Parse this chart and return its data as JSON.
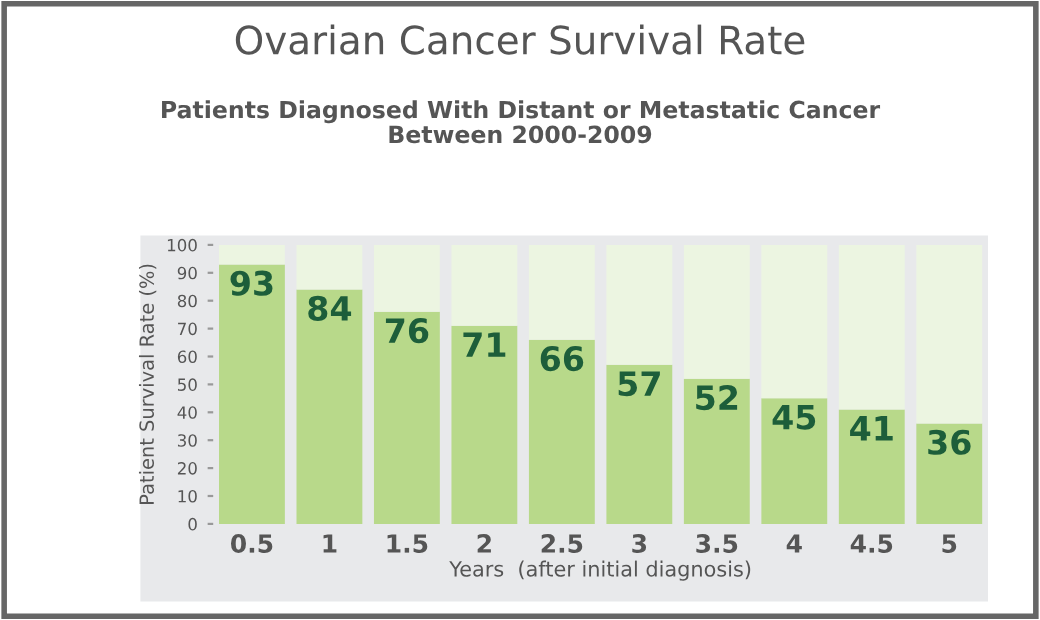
{
  "chart_data": {
    "type": "bar",
    "stacked": true,
    "title": "Ovarian Cancer Survival Rate",
    "subtitle": "Patients Diagnosed With Distant or Metastatic Cancer\nBetween 2000-2009",
    "xlabel": "Years  (after initial diagnosis)",
    "ylabel": "Patient Survival Rate (%)",
    "categories": [
      "0.5",
      "1",
      "1.5",
      "2",
      "2.5",
      "3",
      "3.5",
      "4",
      "4.5",
      "5"
    ],
    "series": [
      {
        "color": "#b8d98a",
        "values": [
          93,
          84,
          76,
          71,
          66,
          57,
          52,
          45,
          41,
          36
        ],
        "value_labels": [
          "93",
          "84",
          "76",
          "71",
          "66",
          "57",
          "52",
          "45",
          "41",
          "36"
        ]
      },
      {
        "color": "#ecf5e1",
        "values": [
          7,
          16,
          24,
          29,
          34,
          43,
          48,
          55,
          59,
          64
        ]
      }
    ],
    "ylim": [
      0,
      100
    ],
    "yticks": [
      0,
      10,
      20,
      30,
      40,
      50,
      60,
      70,
      80,
      90,
      100
    ],
    "grid": false,
    "legend": false
  }
}
